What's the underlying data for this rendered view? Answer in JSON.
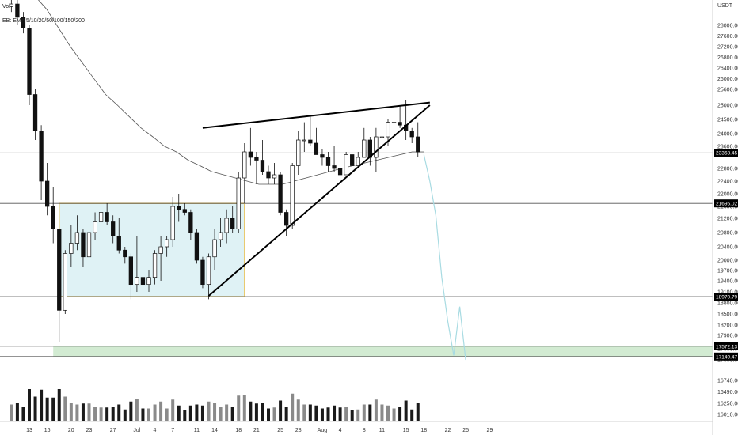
{
  "header": {
    "volume_label": "Vol",
    "ema_label": "EB: EMA 5/10/20/50/100/150/200"
  },
  "chart_data": {
    "type": "candlestick",
    "quote_currency": "USDT",
    "y_axis": {
      "ticks": [
        28000,
        27600,
        27200,
        26800,
        26400,
        26000,
        25600,
        25000,
        24500,
        24000,
        23600,
        22800,
        22400,
        22000,
        21600,
        21200,
        20800,
        20400,
        20000,
        19700,
        19400,
        19100,
        18800,
        18500,
        18200,
        17900,
        17500,
        17200,
        17000,
        16740,
        16490,
        16250,
        16010
      ],
      "tick_labels": [
        "28000.00",
        "27600.00",
        "27200.00",
        "26800.00",
        "26400.00",
        "26000.00",
        "25600.00",
        "25000.00",
        "24500.00",
        "24000.00",
        "23600.00",
        "22800.00",
        "22400.00",
        "22000.00",
        "21600.00",
        "21200.00",
        "20800.00",
        "20400.00",
        "20000.00",
        "19700.00",
        "19400.00",
        "19100.00",
        "18800.00",
        "18500.00",
        "18200.00",
        "17900.00",
        "17500.00",
        "17200.00",
        "17000.00",
        "16740.00",
        "16490.00",
        "16250.00",
        "16010.00"
      ]
    },
    "x_axis": {
      "dates": [
        "2022-06-13",
        "2022-06-16",
        "2022-06-20",
        "2022-06-23",
        "2022-06-27",
        "2022-07-01",
        "2022-07-04",
        "2022-07-07",
        "2022-07-11",
        "2022-07-14",
        "2022-07-18",
        "2022-07-21",
        "2022-07-25",
        "2022-07-28",
        "2022-08-01",
        "2022-08-04",
        "2022-08-08",
        "2022-08-11",
        "2022-08-15",
        "2022-08-18",
        "2022-08-22",
        "2022-08-25",
        "2022-08-29"
      ],
      "tick_labels": [
        "13",
        "16",
        "20",
        "23",
        "27",
        "Jul",
        "4",
        "7",
        "11",
        "14",
        "18",
        "21",
        "25",
        "28",
        "Aug",
        "4",
        "8",
        "11",
        "15",
        "18",
        "22",
        "25",
        "29"
      ]
    },
    "price_tags": [
      {
        "price": 23368.45,
        "label": "23368.45",
        "color": "#000000"
      },
      {
        "price": 21695.02,
        "label": "21695.02",
        "color": "#000000"
      },
      {
        "price": 18970.79,
        "label": "18970.79",
        "color": "#000000"
      },
      {
        "price": 17572.13,
        "label": "17572.13",
        "color": "#000000"
      },
      {
        "price": 17149.47,
        "label": "17149.47",
        "color": "#000000"
      }
    ],
    "horizontal_levels": [
      23368.45,
      21695.02,
      18970.79,
      17572.13,
      17149.47
    ],
    "range_box": {
      "start": "2022-06-18",
      "end": "2022-07-19",
      "top": 21695.02,
      "bottom": 18970.79
    },
    "support_zone": {
      "start": "2022-06-17",
      "end": "2022-08-29",
      "top": 17572.13,
      "bottom": 17149.47
    },
    "rising_wedge": {
      "upper": [
        [
          "2022-07-12",
          24200
        ],
        [
          "2022-08-19",
          25100
        ]
      ],
      "lower": [
        [
          "2022-07-13",
          18990
        ],
        [
          "2022-08-19",
          25000
        ]
      ]
    },
    "projection": {
      "start": "2022-08-18",
      "points": [
        [
          "2022-08-18",
          23300
        ],
        [
          "2022-08-19",
          22400
        ],
        [
          "2022-08-20",
          21300
        ],
        [
          "2022-08-21",
          19500
        ],
        [
          "2022-08-22",
          18300
        ],
        [
          "2022-08-23",
          17200
        ],
        [
          "2022-08-24",
          18700
        ],
        [
          "2022-08-25",
          17000
        ]
      ],
      "color": "#a8dbe2"
    },
    "candles": [
      {
        "d": "2022-06-10",
        "o": 28700,
        "h": 29500,
        "l": 28500,
        "c": 28800
      },
      {
        "d": "2022-06-11",
        "o": 28800,
        "h": 29200,
        "l": 28000,
        "c": 28300
      },
      {
        "d": "2022-06-12",
        "o": 28300,
        "h": 28500,
        "l": 27700,
        "c": 27900
      },
      {
        "d": "2022-06-13",
        "o": 27900,
        "h": 28000,
        "l": 25000,
        "c": 25400
      },
      {
        "d": "2022-06-14",
        "o": 25400,
        "h": 25600,
        "l": 23800,
        "c": 24100
      },
      {
        "d": "2022-06-15",
        "o": 24100,
        "h": 24300,
        "l": 21800,
        "c": 22400
      },
      {
        "d": "2022-06-16",
        "o": 22400,
        "h": 23000,
        "l": 21300,
        "c": 21600
      },
      {
        "d": "2022-06-17",
        "o": 21600,
        "h": 22200,
        "l": 20500,
        "c": 20900
      },
      {
        "d": "2022-06-18",
        "o": 20900,
        "h": 20900,
        "l": 17700,
        "c": 18600
      },
      {
        "d": "2022-06-19",
        "o": 18600,
        "h": 20300,
        "l": 18500,
        "c": 20200
      },
      {
        "d": "2022-06-20",
        "o": 20200,
        "h": 21000,
        "l": 19800,
        "c": 20500
      },
      {
        "d": "2022-06-21",
        "o": 20500,
        "h": 21300,
        "l": 20300,
        "c": 20800
      },
      {
        "d": "2022-06-22",
        "o": 20800,
        "h": 20900,
        "l": 19800,
        "c": 20100
      },
      {
        "d": "2022-06-23",
        "o": 20100,
        "h": 21100,
        "l": 20000,
        "c": 20800
      },
      {
        "d": "2022-06-24",
        "o": 20800,
        "h": 21400,
        "l": 20600,
        "c": 21100
      },
      {
        "d": "2022-06-25",
        "o": 21100,
        "h": 21600,
        "l": 20900,
        "c": 21400
      },
      {
        "d": "2022-06-26",
        "o": 21400,
        "h": 21700,
        "l": 21000,
        "c": 21100
      },
      {
        "d": "2022-06-27",
        "o": 21100,
        "h": 21300,
        "l": 20500,
        "c": 20700
      },
      {
        "d": "2022-06-28",
        "o": 20700,
        "h": 21200,
        "l": 20200,
        "c": 20300
      },
      {
        "d": "2022-06-29",
        "o": 20300,
        "h": 20400,
        "l": 19900,
        "c": 20100
      },
      {
        "d": "2022-06-30",
        "o": 20100,
        "h": 20200,
        "l": 18900,
        "c": 19300
      },
      {
        "d": "2022-07-01",
        "o": 19300,
        "h": 20700,
        "l": 19100,
        "c": 19500
      },
      {
        "d": "2022-07-02",
        "o": 19500,
        "h": 19600,
        "l": 19000,
        "c": 19300
      },
      {
        "d": "2022-07-03",
        "o": 19300,
        "h": 19700,
        "l": 19100,
        "c": 19500
      },
      {
        "d": "2022-07-04",
        "o": 19500,
        "h": 20300,
        "l": 19300,
        "c": 20200
      },
      {
        "d": "2022-07-05",
        "o": 20200,
        "h": 20700,
        "l": 19400,
        "c": 20400
      },
      {
        "d": "2022-07-06",
        "o": 20400,
        "h": 20700,
        "l": 20100,
        "c": 20600
      },
      {
        "d": "2022-07-07",
        "o": 20600,
        "h": 21900,
        "l": 20400,
        "c": 21600
      },
      {
        "d": "2022-07-08",
        "o": 21600,
        "h": 22000,
        "l": 21100,
        "c": 21500
      },
      {
        "d": "2022-07-09",
        "o": 21500,
        "h": 21700,
        "l": 21300,
        "c": 21400
      },
      {
        "d": "2022-07-10",
        "o": 21400,
        "h": 21500,
        "l": 20600,
        "c": 20800
      },
      {
        "d": "2022-07-11",
        "o": 20800,
        "h": 20900,
        "l": 19900,
        "c": 20000
      },
      {
        "d": "2022-07-12",
        "o": 20000,
        "h": 20100,
        "l": 19200,
        "c": 19300
      },
      {
        "d": "2022-07-13",
        "o": 19300,
        "h": 20200,
        "l": 18900,
        "c": 20100
      },
      {
        "d": "2022-07-14",
        "o": 20100,
        "h": 20900,
        "l": 19700,
        "c": 20600
      },
      {
        "d": "2022-07-15",
        "o": 20600,
        "h": 21200,
        "l": 20400,
        "c": 20800
      },
      {
        "d": "2022-07-16",
        "o": 20800,
        "h": 21500,
        "l": 20500,
        "c": 21200
      },
      {
        "d": "2022-07-17",
        "o": 21200,
        "h": 21600,
        "l": 20800,
        "c": 20900
      },
      {
        "d": "2022-07-18",
        "o": 20900,
        "h": 22700,
        "l": 20800,
        "c": 22500
      },
      {
        "d": "2022-07-19",
        "o": 22500,
        "h": 23700,
        "l": 21700,
        "c": 23400
      },
      {
        "d": "2022-07-20",
        "o": 23400,
        "h": 24200,
        "l": 22900,
        "c": 23200
      },
      {
        "d": "2022-07-21",
        "o": 23200,
        "h": 23400,
        "l": 22300,
        "c": 23100
      },
      {
        "d": "2022-07-22",
        "o": 23100,
        "h": 23800,
        "l": 22600,
        "c": 22700
      },
      {
        "d": "2022-07-23",
        "o": 22700,
        "h": 22900,
        "l": 22300,
        "c": 22500
      },
      {
        "d": "2022-07-24",
        "o": 22500,
        "h": 23000,
        "l": 22300,
        "c": 22600
      },
      {
        "d": "2022-07-25",
        "o": 22600,
        "h": 22700,
        "l": 21300,
        "c": 21400
      },
      {
        "d": "2022-07-26",
        "o": 21400,
        "h": 21500,
        "l": 20700,
        "c": 21000
      },
      {
        "d": "2022-07-27",
        "o": 21000,
        "h": 23000,
        "l": 20900,
        "c": 22900
      },
      {
        "d": "2022-07-28",
        "o": 22900,
        "h": 24100,
        "l": 22600,
        "c": 23800
      },
      {
        "d": "2022-07-29",
        "o": 23800,
        "h": 24400,
        "l": 23400,
        "c": 23800
      },
      {
        "d": "2022-07-30",
        "o": 23800,
        "h": 24600,
        "l": 23600,
        "c": 23700
      },
      {
        "d": "2022-07-31",
        "o": 23700,
        "h": 24200,
        "l": 23300,
        "c": 23300
      },
      {
        "d": "2022-08-01",
        "o": 23300,
        "h": 23500,
        "l": 22900,
        "c": 23200
      },
      {
        "d": "2022-08-02",
        "o": 23200,
        "h": 23400,
        "l": 22700,
        "c": 22900
      },
      {
        "d": "2022-08-03",
        "o": 22900,
        "h": 23600,
        "l": 22700,
        "c": 22800
      },
      {
        "d": "2022-08-04",
        "o": 22800,
        "h": 23200,
        "l": 22500,
        "c": 22600
      },
      {
        "d": "2022-08-05",
        "o": 22600,
        "h": 23400,
        "l": 22600,
        "c": 23300
      },
      {
        "d": "2022-08-06",
        "o": 23300,
        "h": 23300,
        "l": 22900,
        "c": 22900
      },
      {
        "d": "2022-08-07",
        "o": 22900,
        "h": 23400,
        "l": 22900,
        "c": 23200
      },
      {
        "d": "2022-08-08",
        "o": 23200,
        "h": 24200,
        "l": 23200,
        "c": 23800
      },
      {
        "d": "2022-08-09",
        "o": 23800,
        "h": 23900,
        "l": 22900,
        "c": 23200
      },
      {
        "d": "2022-08-10",
        "o": 23200,
        "h": 24200,
        "l": 22700,
        "c": 23900
      },
      {
        "d": "2022-08-11",
        "o": 23900,
        "h": 24900,
        "l": 23900,
        "c": 23900
      },
      {
        "d": "2022-08-12",
        "o": 23900,
        "h": 24500,
        "l": 23600,
        "c": 24400
      },
      {
        "d": "2022-08-13",
        "o": 24400,
        "h": 24900,
        "l": 24300,
        "c": 24400
      },
      {
        "d": "2022-08-14",
        "o": 24400,
        "h": 25000,
        "l": 24200,
        "c": 24300
      },
      {
        "d": "2022-08-15",
        "o": 24300,
        "h": 25200,
        "l": 23800,
        "c": 24100
      },
      {
        "d": "2022-08-16",
        "o": 24100,
        "h": 24200,
        "l": 23700,
        "c": 23900
      },
      {
        "d": "2022-08-17",
        "o": 23900,
        "h": 24400,
        "l": 23200,
        "c": 23400
      }
    ],
    "moving_averages": [
      {
        "name": "EMA 200",
        "values": [
          29800,
          29500,
          29100,
          28600,
          27900,
          27200,
          26600,
          26000,
          25400,
          25000,
          24600,
          24200,
          23900,
          23600,
          23400,
          23100,
          22900,
          22700,
          22600,
          22500,
          22400,
          22300,
          22300,
          22300,
          22400,
          22500,
          22600,
          22700,
          22800,
          22900,
          23000,
          23100,
          23200,
          23300,
          23400,
          23400
        ]
      }
    ]
  }
}
